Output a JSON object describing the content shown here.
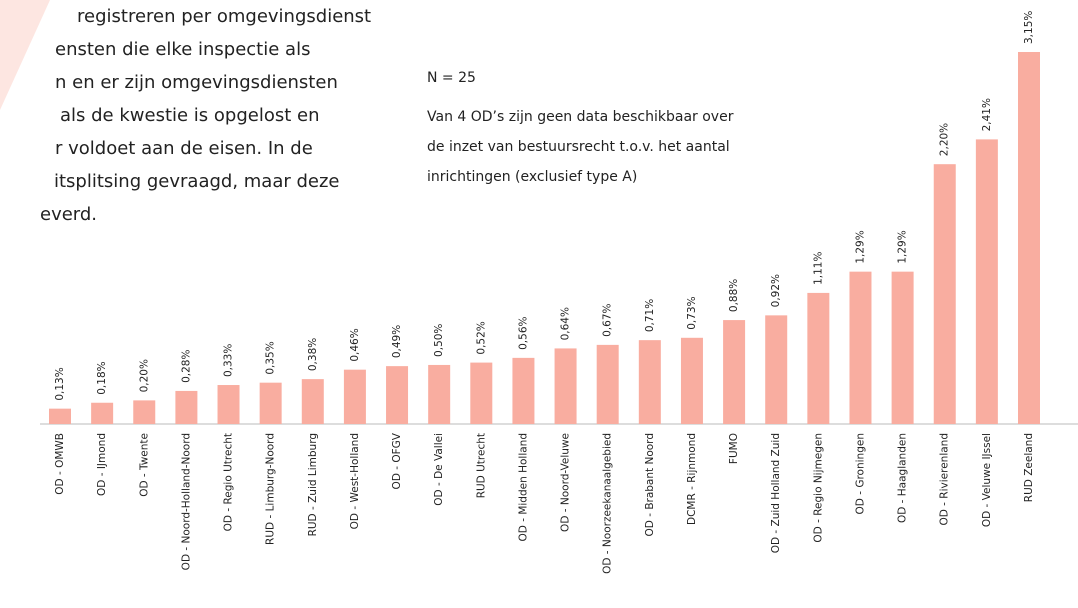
{
  "body_text": [
    "registreren per omgevingsdienst",
    "ensten die elke inspectie als",
    "n en er zijn omgevingsdiensten",
    "als de kwestie is opgelost en",
    "r voldoet aan de eisen. In de",
    "itsplitsing gevraagd, maar deze",
    "everd."
  ],
  "chart_data": {
    "type": "bar",
    "annotations": [
      "N = 25",
      "Van 4 OD’s zijn geen data beschikbaar over",
      "de inzet van bestuursrecht t.o.v. het aantal",
      "inrichtingen (exclusief type A)"
    ],
    "categories": [
      "OD - OMWB",
      "OD - IJmond",
      "OD - Twente",
      "OD - Noord-Holland-Noord",
      "OD - Regio Utrecht",
      "RUD - Limburg-Noord",
      "RUD - Zuid Limburg",
      "OD - West-Holland",
      "OD - OFGV",
      "OD - De Vallei",
      "RUD Utrecht",
      "OD - Midden Holland",
      "OD - Noord-Veluwe",
      "OD - Noorzeekanaalgebied",
      "OD - Brabant Noord",
      "DCMR - Rijnmond",
      "FUMO",
      "OD - Zuid Holland Zuid",
      "OD - Regio Nijmegen",
      "OD - Groningen",
      "OD - Haaglanden",
      "OD - Rivierenland",
      "OD - Veluwe IJssel",
      "RUD Zeeland"
    ],
    "values": [
      0.13,
      0.18,
      0.2,
      0.28,
      0.33,
      0.35,
      0.38,
      0.46,
      0.49,
      0.5,
      0.52,
      0.56,
      0.64,
      0.67,
      0.71,
      0.73,
      0.88,
      0.92,
      1.11,
      1.29,
      1.29,
      2.2,
      2.41,
      3.15
    ],
    "value_labels": [
      "0,13%",
      "0,18%",
      "0,20%",
      "0,28%",
      "0,33%",
      "0,35%",
      "0,38%",
      "0,46%",
      "0,49%",
      "0,50%",
      "0,52%",
      "0,56%",
      "0,64%",
      "0,67%",
      "0,71%",
      "0,73%",
      "0,88%",
      "0,92%",
      "1,11%",
      "1,29%",
      "1,29%",
      "2,20%",
      "2,41%",
      "3,15%"
    ],
    "color": "#f9ada0"
  }
}
